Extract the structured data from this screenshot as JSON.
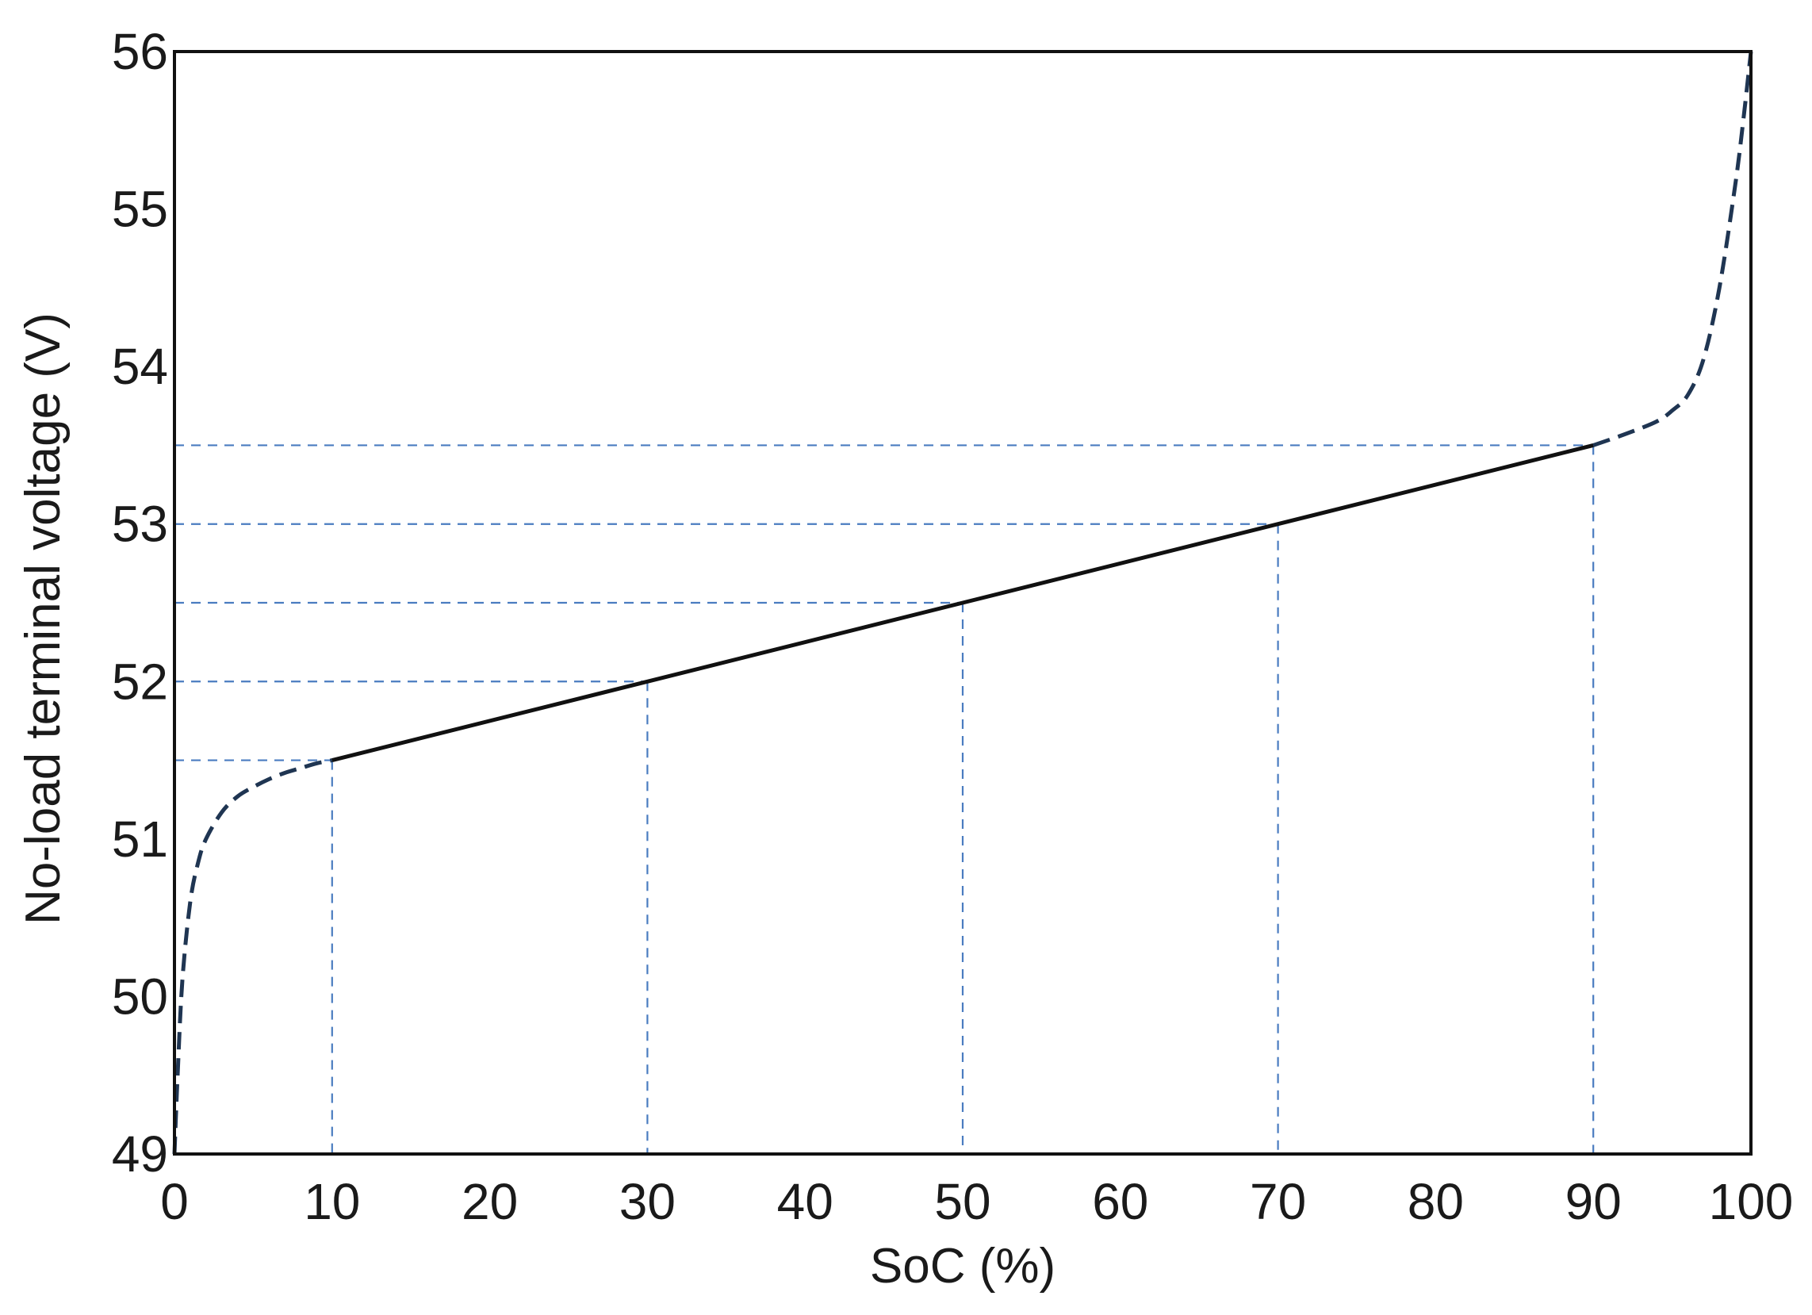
{
  "chart_data": {
    "type": "line",
    "title": "",
    "xlabel": "SoC (%)",
    "ylabel": "No-load terminal voltage (V)",
    "xlim": [
      0,
      100
    ],
    "ylim": [
      49,
      56
    ],
    "xticks": [
      0,
      10,
      20,
      30,
      40,
      50,
      60,
      70,
      80,
      90,
      100
    ],
    "yticks": [
      49,
      50,
      51,
      52,
      53,
      54,
      55,
      56
    ],
    "grid": false,
    "legend": "none",
    "series": [
      {
        "style": "dashed",
        "color": "#1f3552",
        "x": [
          0,
          0.2,
          0.5,
          1,
          1.5,
          2,
          3,
          4,
          5,
          6,
          7,
          8,
          9,
          10
        ],
        "y": [
          49,
          49.5,
          50.1,
          50.6,
          50.85,
          51.0,
          51.17,
          51.27,
          51.33,
          51.38,
          51.42,
          51.45,
          51.48,
          51.5
        ]
      },
      {
        "style": "solid",
        "color": "#111111",
        "x": [
          10,
          30,
          50,
          70,
          90
        ],
        "y": [
          51.5,
          52.0,
          52.5,
          53.0,
          53.5
        ]
      },
      {
        "style": "dashed",
        "color": "#1f3552",
        "x": [
          90,
          92,
          94,
          95,
          96,
          97,
          98,
          99,
          99.5,
          100
        ],
        "y": [
          53.5,
          53.57,
          53.65,
          53.72,
          53.82,
          54.05,
          54.5,
          55.15,
          55.55,
          56
        ]
      }
    ],
    "reference_lines": {
      "color": "#4a7cc0",
      "points": [
        {
          "x": 10,
          "y": 51.5
        },
        {
          "x": 30,
          "y": 52.0
        },
        {
          "x": 50,
          "y": 52.5
        },
        {
          "x": 70,
          "y": 53.0
        },
        {
          "x": 90,
          "y": 53.5
        }
      ]
    }
  }
}
